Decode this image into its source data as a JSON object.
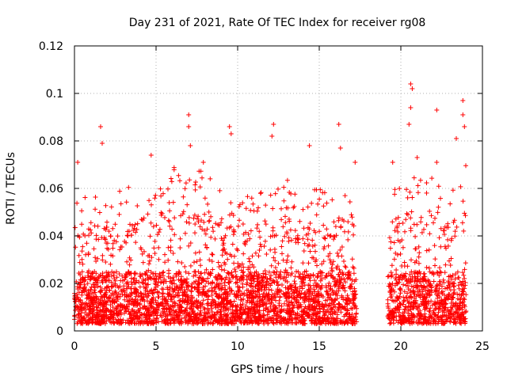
{
  "colors": {
    "series": "#ff0000",
    "grid": "#b0b0b0",
    "axis": "#000000"
  },
  "chart_data": {
    "type": "scatter",
    "title": "Day 231 of 2021, Rate Of TEC Index for receiver rg08",
    "xlabel": "GPS time / hours",
    "ylabel": "ROTI / TECUs",
    "xlim": [
      0,
      25
    ],
    "ylim": [
      0,
      0.12
    ],
    "grid": true,
    "marker": "+",
    "x_ticks": [
      0,
      5,
      10,
      15,
      20,
      25
    ],
    "x_tick_labels": [
      "0",
      "5",
      "10",
      "15",
      "20",
      "25"
    ],
    "y_ticks": [
      0,
      0.02,
      0.04,
      0.06,
      0.08,
      0.1,
      0.12
    ],
    "y_tick_labels": [
      "0",
      "0.02",
      "0.04",
      "0.06",
      "0.08",
      "0.1",
      "0.12"
    ],
    "data_gaps_hours": [
      [
        17.3,
        19.2
      ]
    ],
    "series": [
      {
        "name": "ROTI",
        "outliers": [
          {
            "x": 0.2,
            "y": 0.071
          },
          {
            "x": 1.6,
            "y": 0.086
          },
          {
            "x": 1.7,
            "y": 0.079
          },
          {
            "x": 4.7,
            "y": 0.074
          },
          {
            "x": 7.0,
            "y": 0.091
          },
          {
            "x": 7.0,
            "y": 0.086
          },
          {
            "x": 7.1,
            "y": 0.078
          },
          {
            "x": 7.9,
            "y": 0.071
          },
          {
            "x": 9.5,
            "y": 0.086
          },
          {
            "x": 9.6,
            "y": 0.083
          },
          {
            "x": 12.2,
            "y": 0.087
          },
          {
            "x": 12.1,
            "y": 0.082
          },
          {
            "x": 14.4,
            "y": 0.078
          },
          {
            "x": 16.2,
            "y": 0.087
          },
          {
            "x": 16.3,
            "y": 0.077
          },
          {
            "x": 17.2,
            "y": 0.071
          },
          {
            "x": 20.6,
            "y": 0.104
          },
          {
            "x": 20.7,
            "y": 0.102
          },
          {
            "x": 20.6,
            "y": 0.094
          },
          {
            "x": 20.5,
            "y": 0.087
          },
          {
            "x": 22.2,
            "y": 0.093
          },
          {
            "x": 23.4,
            "y": 0.081
          },
          {
            "x": 23.8,
            "y": 0.097
          },
          {
            "x": 23.8,
            "y": 0.091
          },
          {
            "x": 23.9,
            "y": 0.086
          },
          {
            "x": 19.5,
            "y": 0.071
          },
          {
            "x": 21.0,
            "y": 0.073
          },
          {
            "x": 22.2,
            "y": 0.071
          }
        ],
        "envelope_hours": [
          0,
          1,
          2,
          3,
          4,
          5,
          6,
          7,
          8,
          9,
          10,
          11,
          12,
          13,
          14,
          15,
          16,
          17,
          19.3,
          20,
          21,
          22,
          23,
          24
        ],
        "envelope_upper": [
          0.06,
          0.055,
          0.06,
          0.06,
          0.062,
          0.062,
          0.07,
          0.068,
          0.07,
          0.06,
          0.062,
          0.058,
          0.065,
          0.065,
          0.058,
          0.06,
          0.062,
          0.065,
          0.06,
          0.07,
          0.065,
          0.068,
          0.06,
          0.07
        ],
        "typical_range": [
          0.003,
          0.025
        ]
      }
    ]
  }
}
